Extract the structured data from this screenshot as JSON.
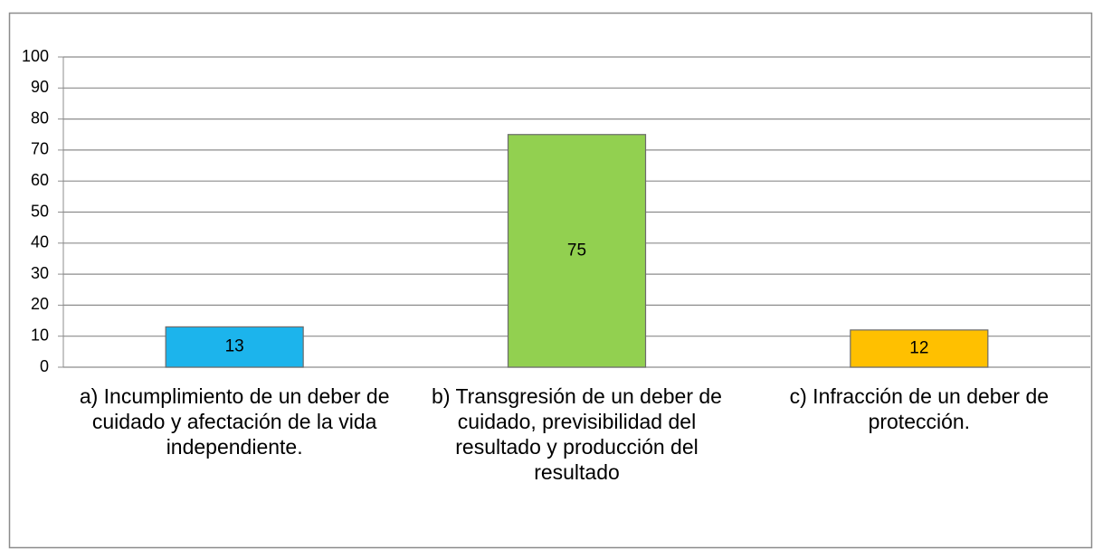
{
  "chart_data": {
    "type": "bar",
    "categories": [
      "a) Incumplimiento de un deber de cuidado y afectación de la vida independiente.",
      "b) Transgresión de un deber de cuidado, previsibilidad del resultado y producción del resultado",
      "c) Infracción de un deber de protección."
    ],
    "values": [
      13,
      75,
      12
    ],
    "colors": [
      "#1cb4ec",
      "#92d050",
      "#ffc000"
    ],
    "ylim": [
      0,
      100
    ],
    "yticks": [
      0,
      10,
      20,
      30,
      40,
      50,
      60,
      70,
      80,
      90,
      100
    ],
    "grid": true
  }
}
